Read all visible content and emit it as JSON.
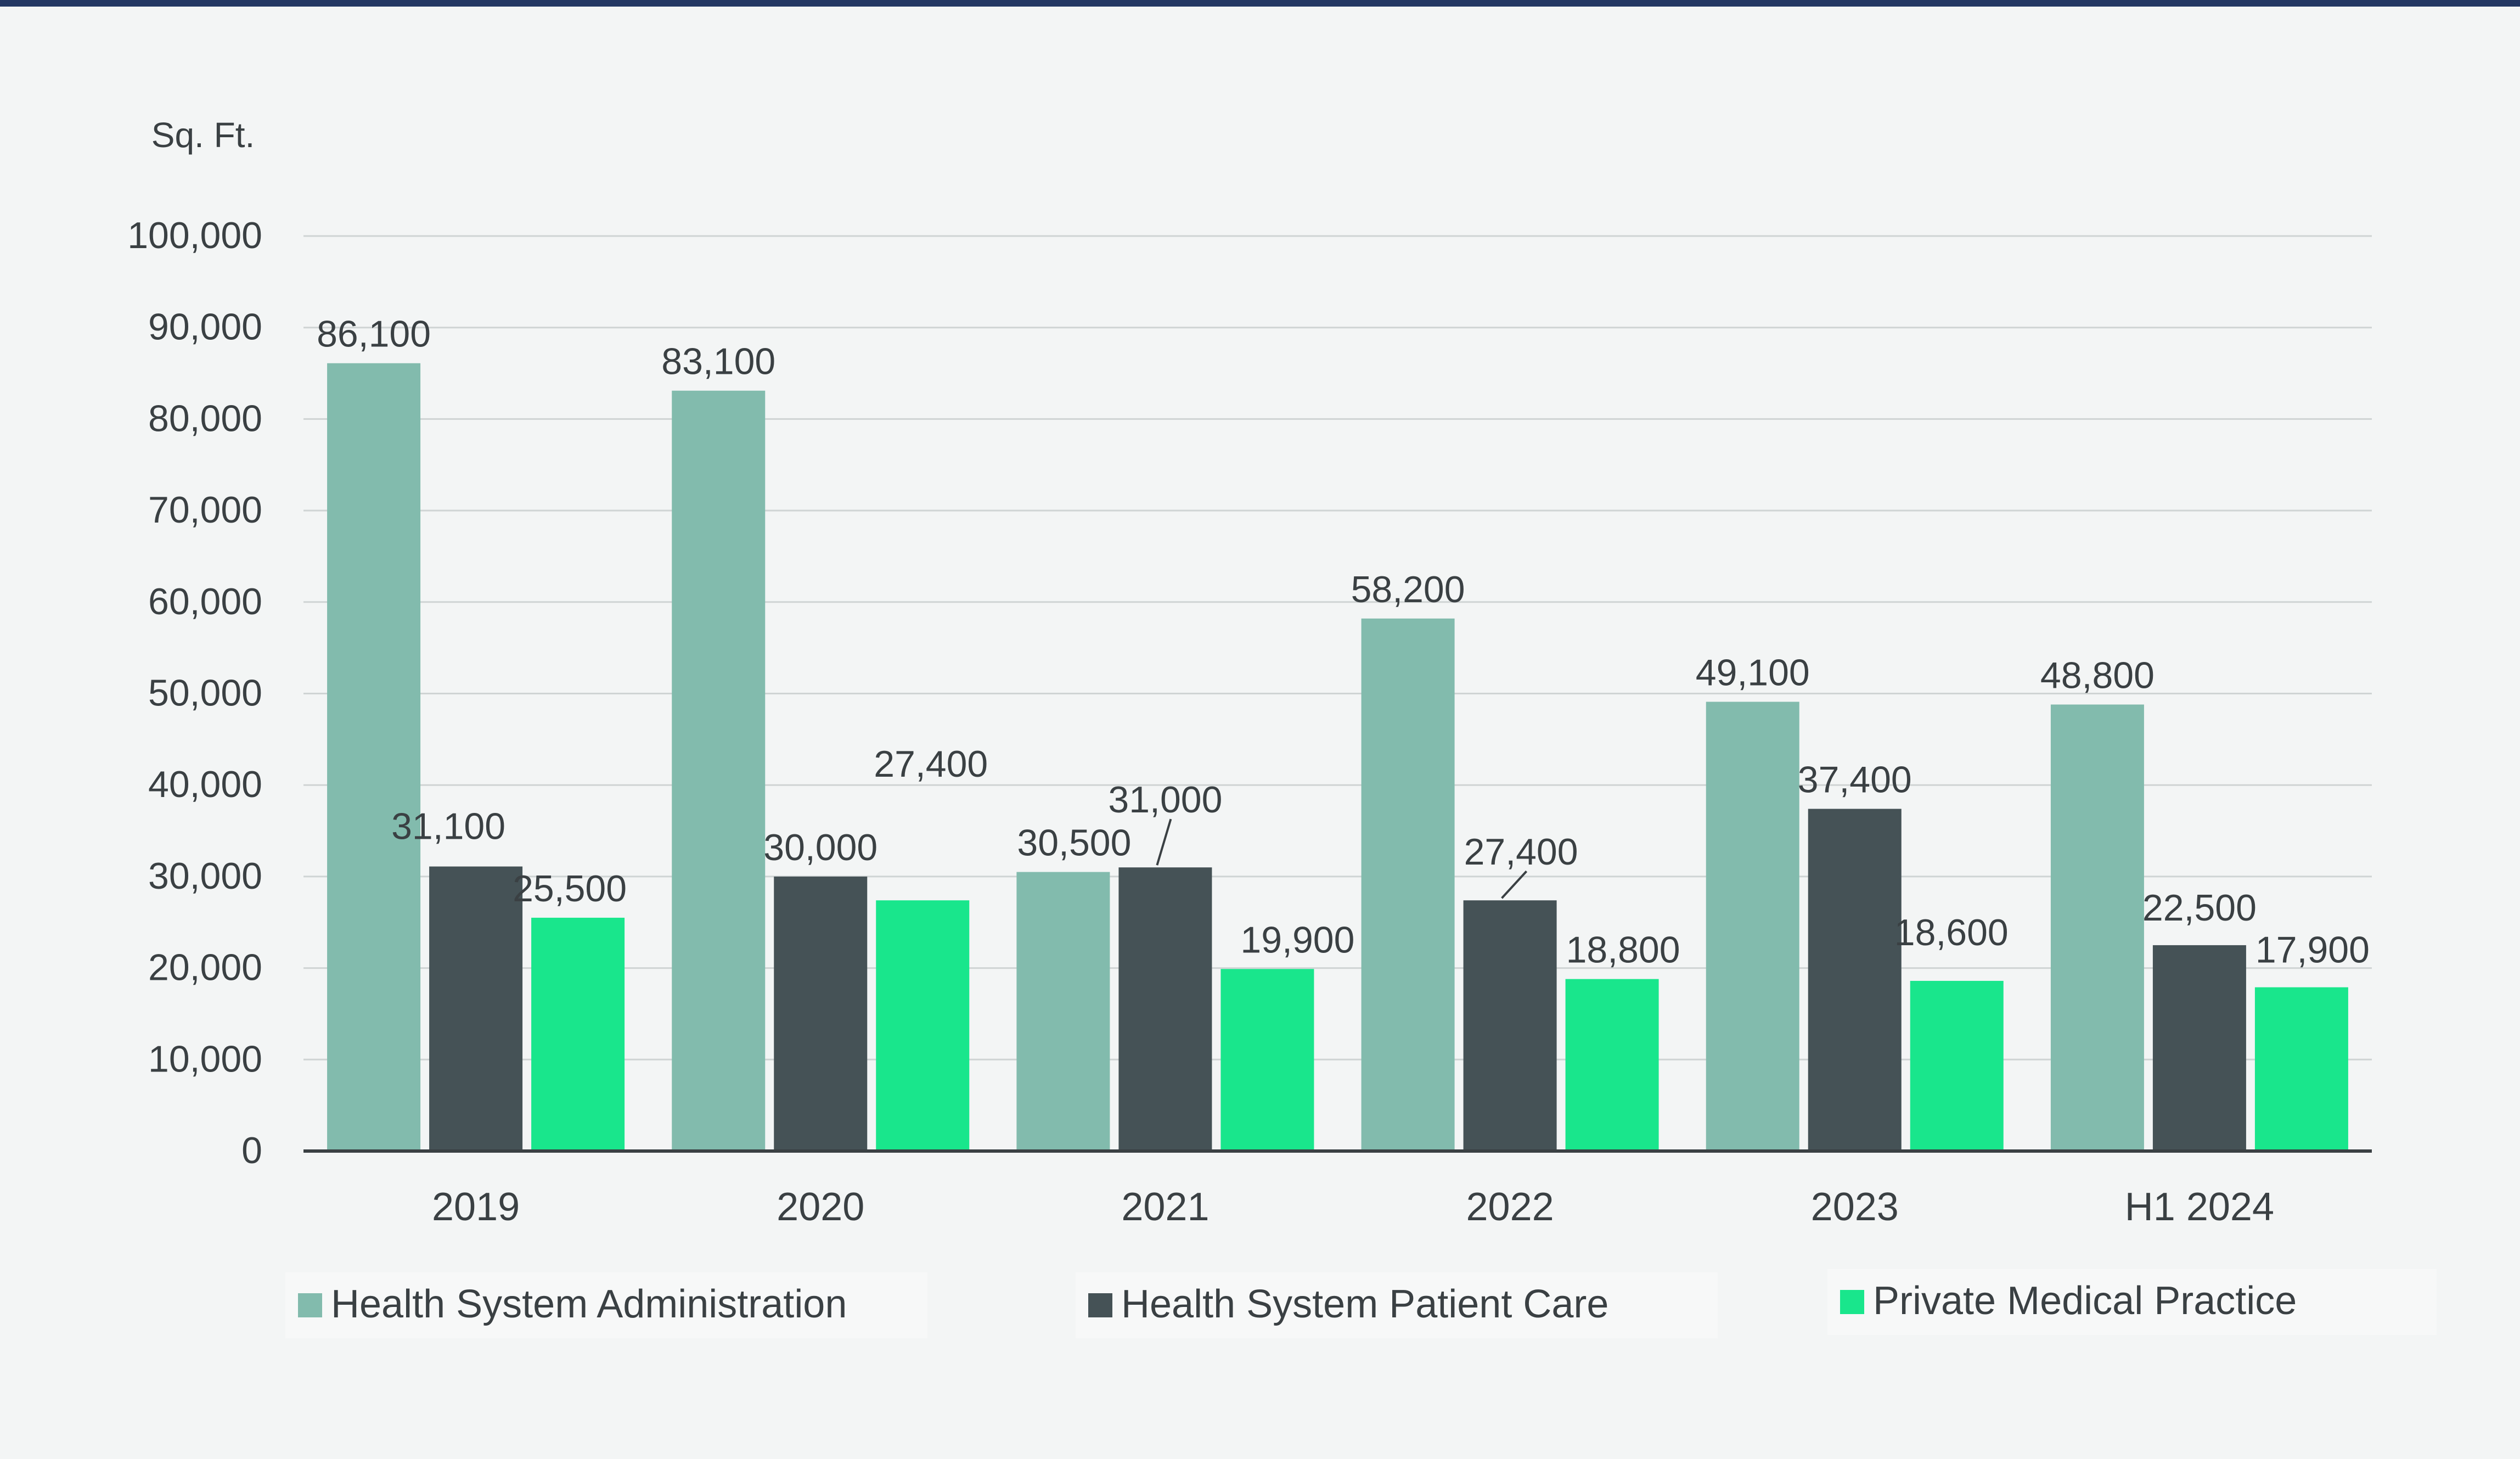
{
  "chart_data": {
    "type": "bar",
    "title": "",
    "ylabel": "Sq. Ft.",
    "xlabel": "",
    "ylim": [
      0,
      100000
    ],
    "yticks": [
      0,
      10000,
      20000,
      30000,
      40000,
      50000,
      60000,
      70000,
      80000,
      90000,
      100000
    ],
    "ytick_labels": [
      "0",
      "10,000",
      "20,000",
      "30,000",
      "40,000",
      "50,000",
      "60,000",
      "70,000",
      "80,000",
      "90,000",
      "100,000"
    ],
    "grid": true,
    "legend_position": "bottom",
    "categories": [
      "2019",
      "2020",
      "2021",
      "2022",
      "2023",
      "H1 2024"
    ],
    "series": [
      {
        "name": "Health System Administration",
        "color": "#82bbad",
        "values": [
          86100,
          83100,
          30500,
          58200,
          49100,
          48800
        ],
        "labels": [
          "86,100",
          "83,100",
          "30,500",
          "58,200",
          "49,100",
          "48,800"
        ]
      },
      {
        "name": "Health System Patient Care",
        "color": "#455256",
        "values": [
          31100,
          30000,
          31000,
          27400,
          37400,
          22500
        ],
        "labels": [
          "31,100",
          "30,000",
          "31,000",
          "27,400",
          "37,400",
          "22,500"
        ]
      },
      {
        "name": "Private Medical Practice",
        "color": "#19e68c",
        "values": [
          25500,
          27400,
          19900,
          18800,
          18600,
          17900
        ],
        "labels": [
          "25,500",
          "27,400",
          "19,900",
          "18,800",
          "18,600",
          "17,900"
        ]
      }
    ]
  },
  "colors": {
    "top_rule": "#233863",
    "background": "#f3f5f5",
    "gridline": "#cfd4d4",
    "axis": "#3a4043",
    "text": "#3a4043"
  }
}
